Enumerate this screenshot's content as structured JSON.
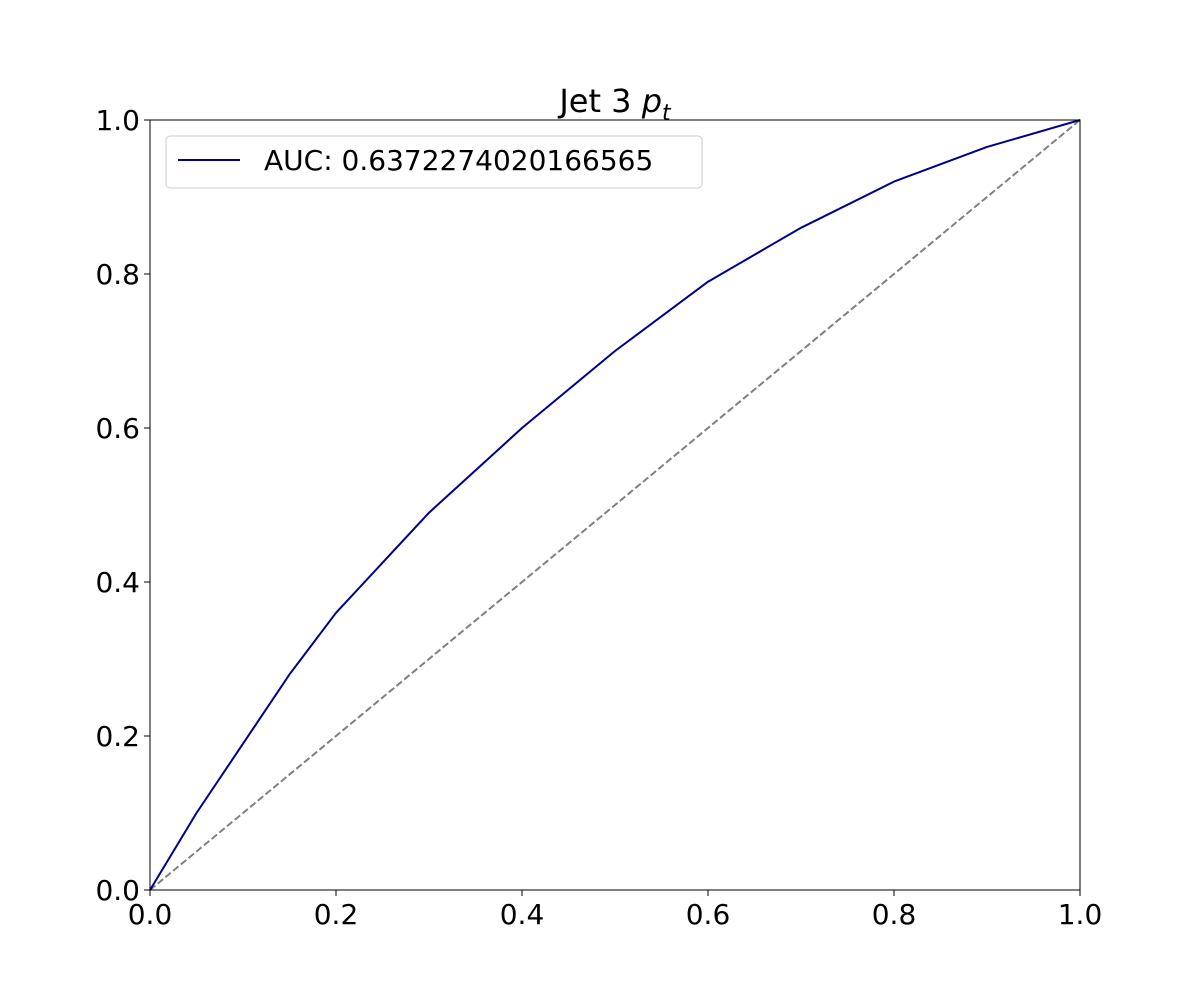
{
  "chart_data": {
    "type": "line",
    "title": "Jet 3",
    "title_symbol": "p",
    "title_subscript": "t",
    "x": [
      0,
      0.05,
      0.1,
      0.15,
      0.2,
      0.3,
      0.4,
      0.5,
      0.6,
      0.7,
      0.8,
      0.9,
      1.0
    ],
    "series": [
      {
        "name": "AUC: 0.6372274020166565",
        "color": "#00008b",
        "values": [
          0,
          0.1,
          0.19,
          0.28,
          0.36,
          0.49,
          0.6,
          0.7,
          0.79,
          0.86,
          0.92,
          0.965,
          1.0
        ]
      }
    ],
    "reference": {
      "x": [
        0,
        1
      ],
      "values": [
        0,
        1
      ],
      "color": "#808080",
      "style": "dashed"
    },
    "xlim": [
      0,
      1
    ],
    "ylim": [
      0,
      1
    ],
    "xticks": [
      {
        "value": 0,
        "label": "0.0"
      },
      0.2,
      0.4,
      0.6,
      0.8,
      {
        "value": 1,
        "label": "1.0"
      }
    ],
    "yticks": [
      {
        "value": 0,
        "label": "0.0"
      },
      0.2,
      0.4,
      0.6,
      0.8,
      {
        "value": 1,
        "label": "1.0"
      }
    ],
    "legend": "upper left",
    "grid": false
  }
}
